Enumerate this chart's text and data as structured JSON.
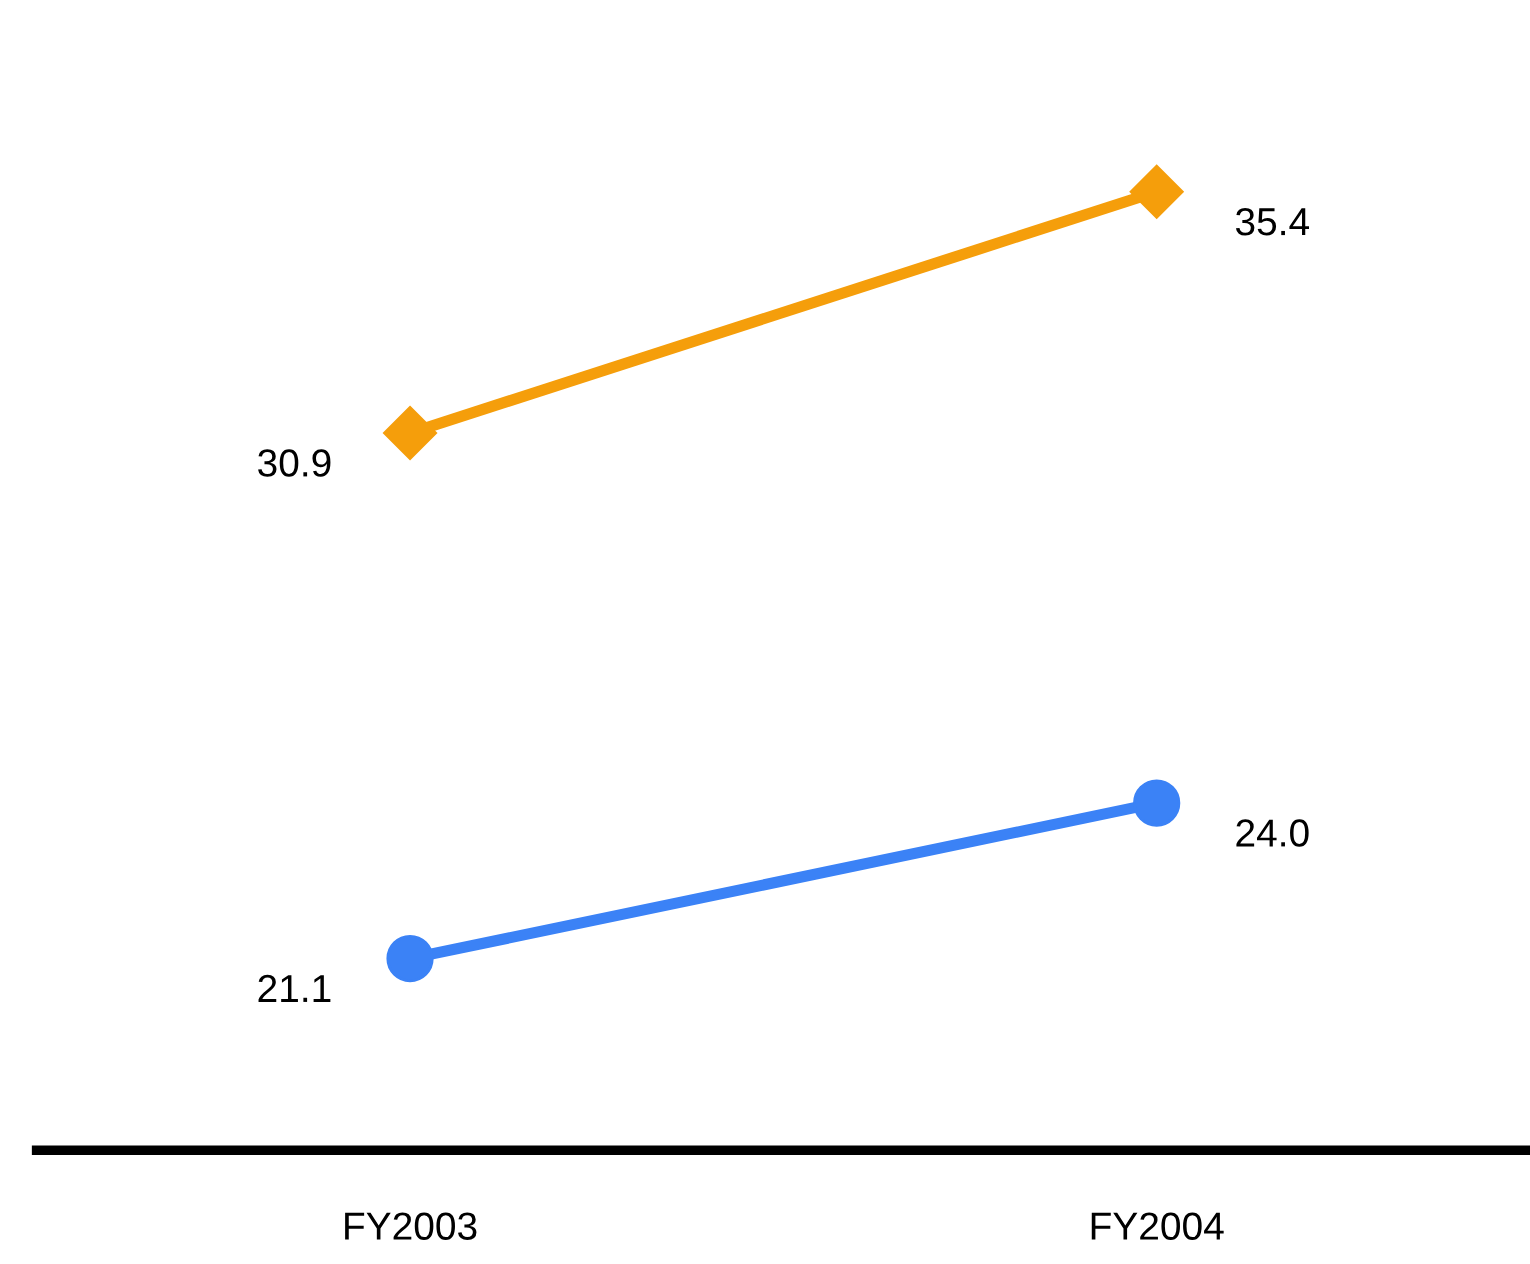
{
  "chart_data": {
    "type": "line",
    "categories": [
      "FY2003",
      "FY2004"
    ],
    "series": [
      {
        "color": "#f59e0b",
        "values": [
          30.9,
          35.4
        ],
        "value_labels": [
          "30.9",
          "35.4"
        ],
        "marker": "diamond"
      },
      {
        "color": "#3b82f6",
        "values": [
          21.1,
          24.0
        ],
        "value_labels": [
          "21.1",
          "24.0"
        ],
        "marker": "circle"
      }
    ],
    "grid": false,
    "legend": false,
    "tick_labels": "x"
  }
}
